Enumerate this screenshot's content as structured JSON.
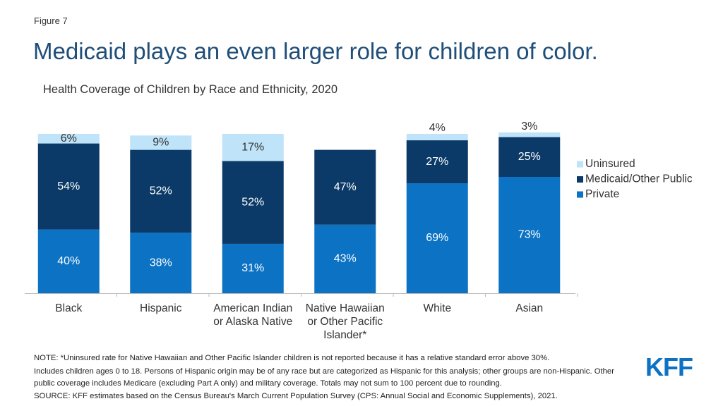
{
  "figure_label": "Figure 7",
  "headline": "Medicaid plays an even larger role for children of color.",
  "chart_data": {
    "type": "stacked-bar",
    "title": "Health Coverage of Children by Race and Ethnicity, 2020",
    "categories": [
      "Black",
      "Hispanic",
      "American Indian or Alaska Native",
      "Native Hawaiian or Other Pacific Islander*",
      "White",
      "Asian"
    ],
    "series": [
      {
        "name": "Private",
        "color": "#0b72c4",
        "values": [
          40,
          38,
          31,
          43,
          69,
          73
        ],
        "value_labels": [
          "40%",
          "38%",
          "31%",
          "43%",
          "69%",
          "73%"
        ]
      },
      {
        "name": "Medicaid/Other Public",
        "color": "#0c3a68",
        "values": [
          54,
          52,
          52,
          47,
          27,
          25
        ],
        "value_labels": [
          "54%",
          "52%",
          "52%",
          "47%",
          "27%",
          "25%"
        ]
      },
      {
        "name": "Uninsured",
        "color": "#bfe3f8",
        "values": [
          6,
          9,
          17,
          null,
          4,
          3
        ],
        "value_labels": [
          "6%",
          "9%",
          "17%",
          null,
          "4%",
          "3%"
        ]
      }
    ],
    "legend": "right"
  },
  "notes": [
    "NOTE: *Uninsured rate for Native Hawaiian and Other Pacific Islander children is not reported because it has a relative standard error above 30%.",
    "Includes children ages 0 to 18. Persons of Hispanic origin may be of any race but are categorized as Hispanic for this analysis; other groups are non-Hispanic. Other public coverage includes Medicare (excluding Part A only) and military coverage. Totals may not sum to 100 percent due to rounding.",
    "SOURCE: KFF estimates based on the Census Bureau's March Current Population Survey (CPS: Annual Social and Economic Supplements), 2021."
  ],
  "logo": "KFF"
}
